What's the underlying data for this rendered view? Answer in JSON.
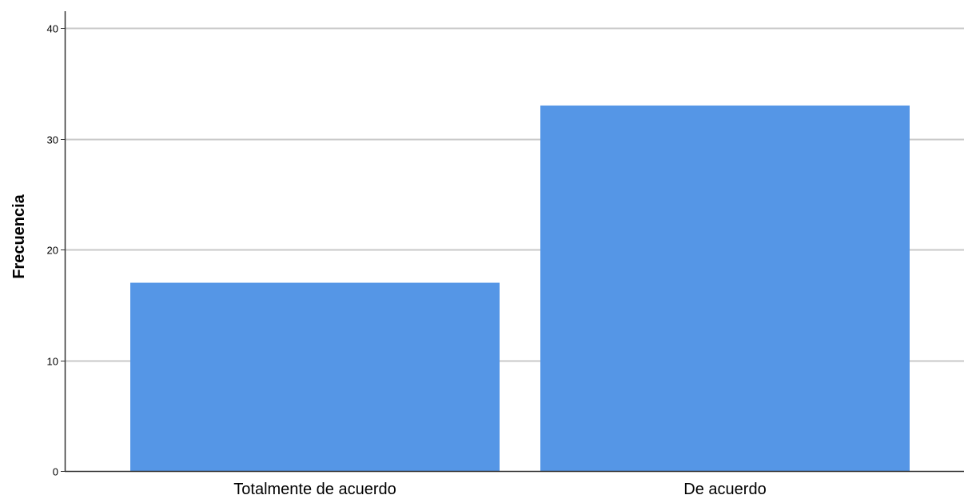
{
  "chart_data": {
    "type": "bar",
    "categories": [
      "Totalmente de acuerdo",
      "De acuerdo"
    ],
    "values": [
      17,
      33
    ],
    "title": "",
    "xlabel": "",
    "ylabel": "Frecuencia",
    "ylim": [
      0,
      40
    ],
    "yticks": [
      0,
      10,
      20,
      30,
      40
    ],
    "grid": true,
    "bar_color": "#5596e6",
    "grid_color": "#c8c8c8",
    "axis_color": "#333333"
  }
}
